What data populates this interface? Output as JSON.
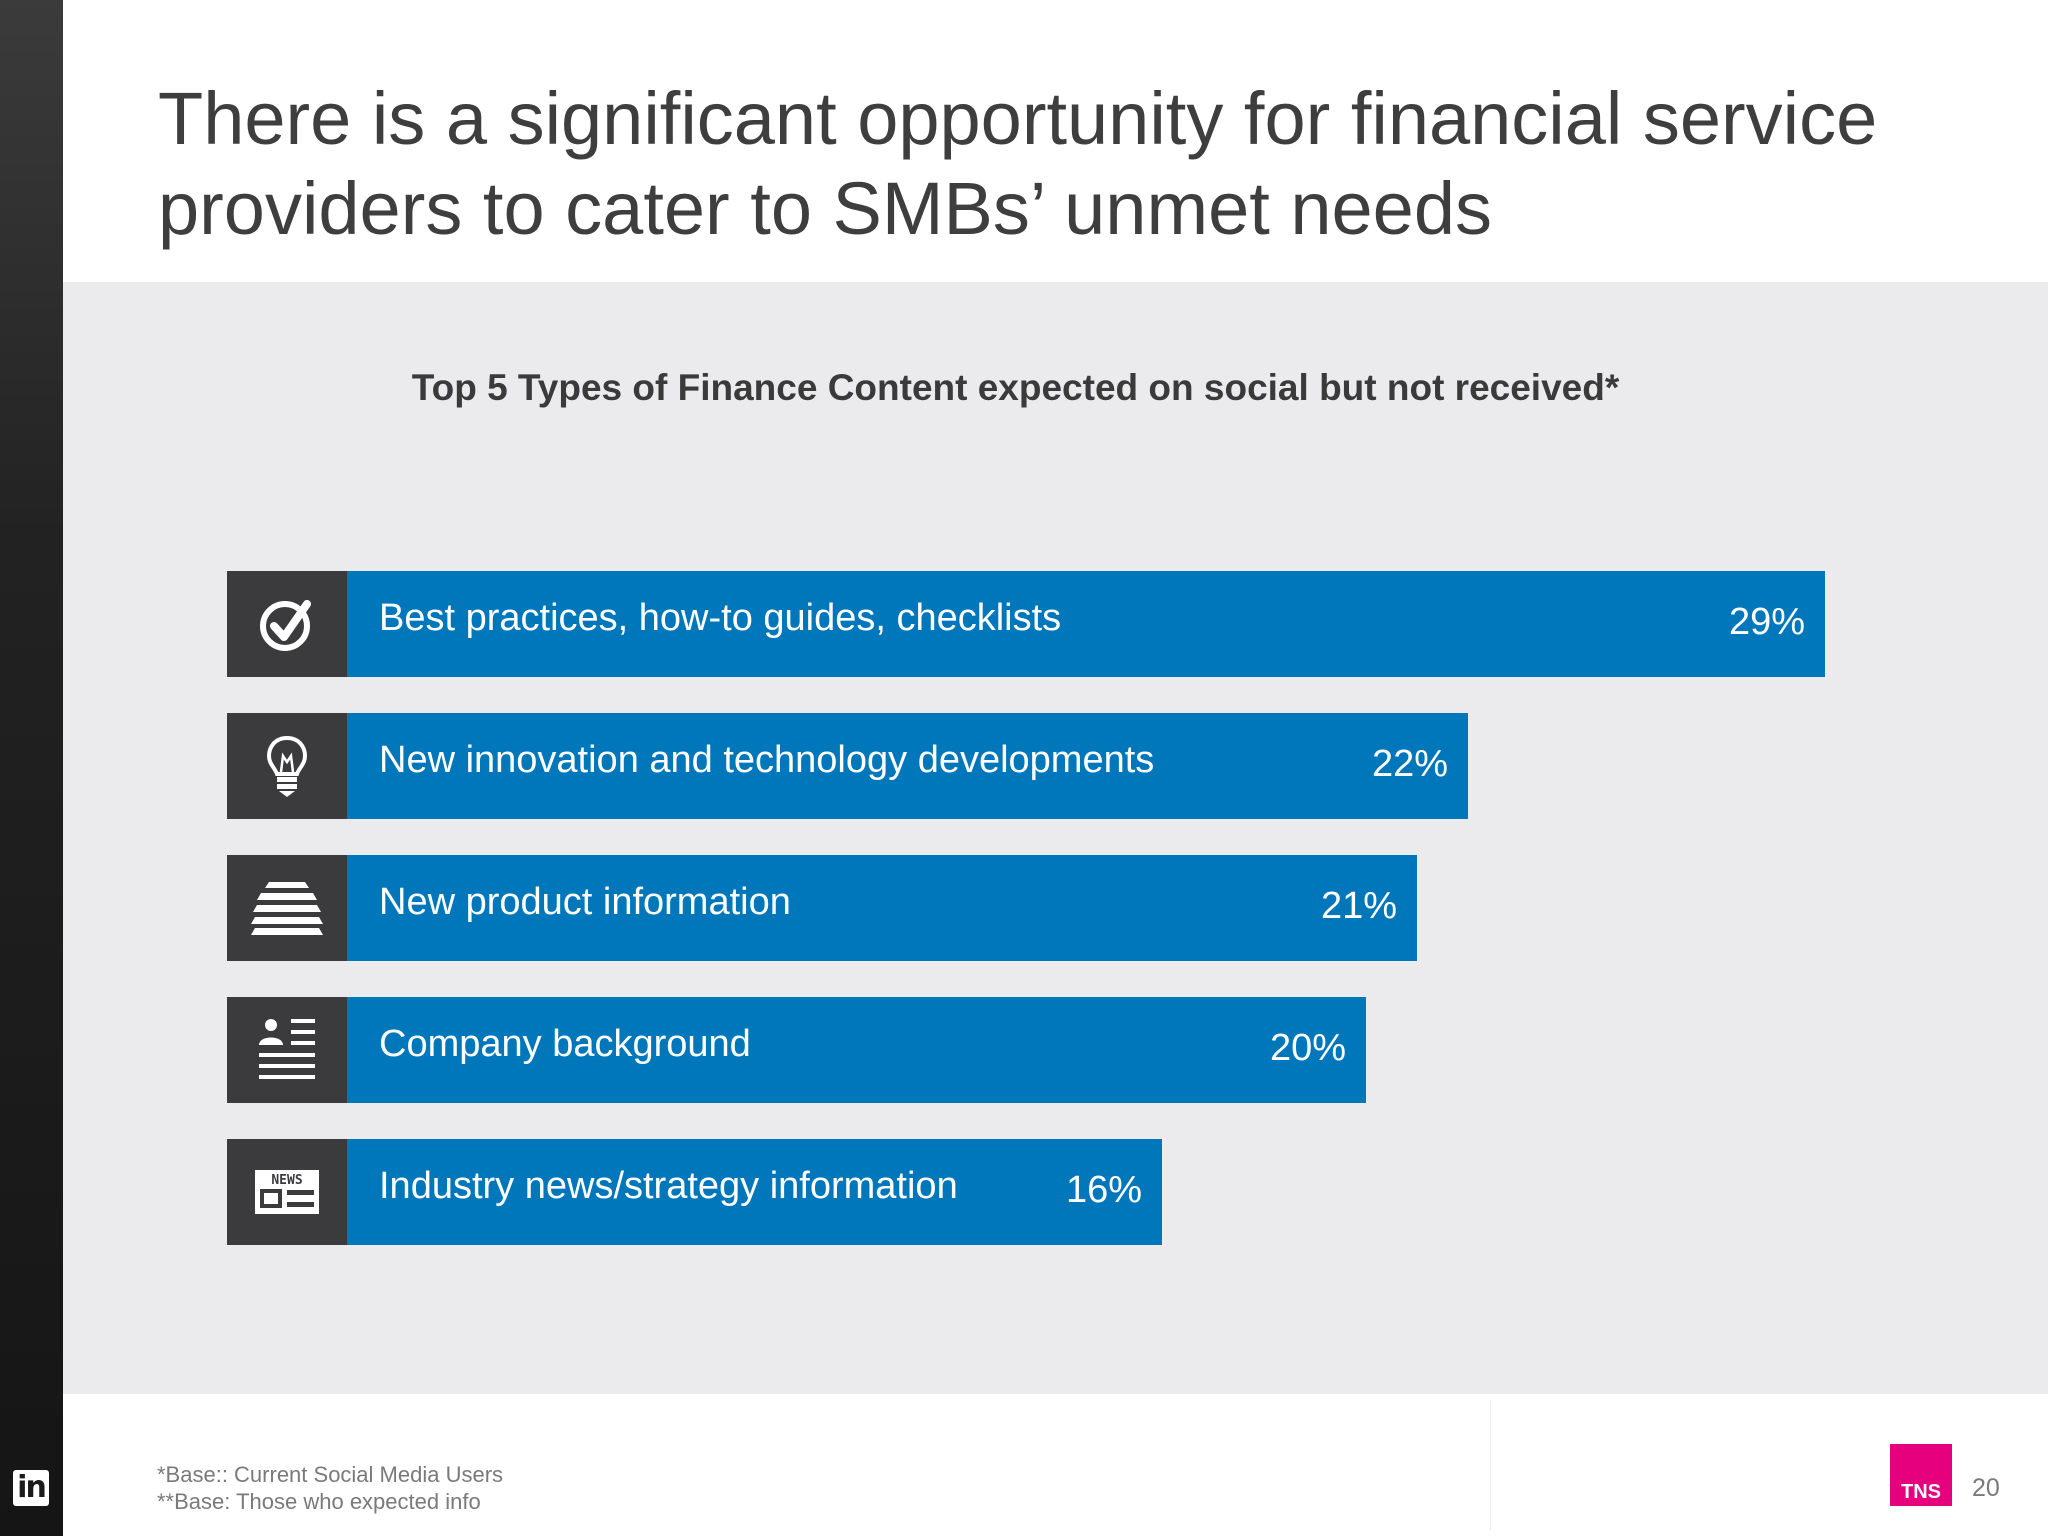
{
  "slide": {
    "title": "There is a significant opportunity for financial service providers to cater to SMBs’ unmet needs",
    "footnotes": [
      "*Base:: Current Social Media Users",
      "**Base: Those who expected info"
    ],
    "page_number": "20",
    "logo_text": "TNS",
    "sidebar_logo_text": "in"
  },
  "chart_data": {
    "type": "bar",
    "orientation": "horizontal",
    "title": "Top 5 Types of Finance Content expected on social but not received*",
    "categories": [
      "Best practices, how-to guides, checklists",
      "New innovation and technology developments",
      "New product information",
      "Company background",
      "Industry news/strategy information"
    ],
    "values": [
      29,
      22,
      21,
      20,
      16
    ],
    "value_labels": [
      "29%",
      "22%",
      "21%",
      "20%",
      "16%"
    ],
    "icons": [
      "checkmark-icon",
      "lightbulb-icon",
      "layers-icon",
      "profile-document-icon",
      "newspaper-icon"
    ],
    "unit": "%",
    "bar_color": "#0077bb",
    "icon_box_color": "#3b3b3d",
    "grid": false,
    "legend": "none"
  },
  "colors": {
    "accent": "#0077bb",
    "brand": "#e6007e",
    "panel": "#ebebed"
  }
}
